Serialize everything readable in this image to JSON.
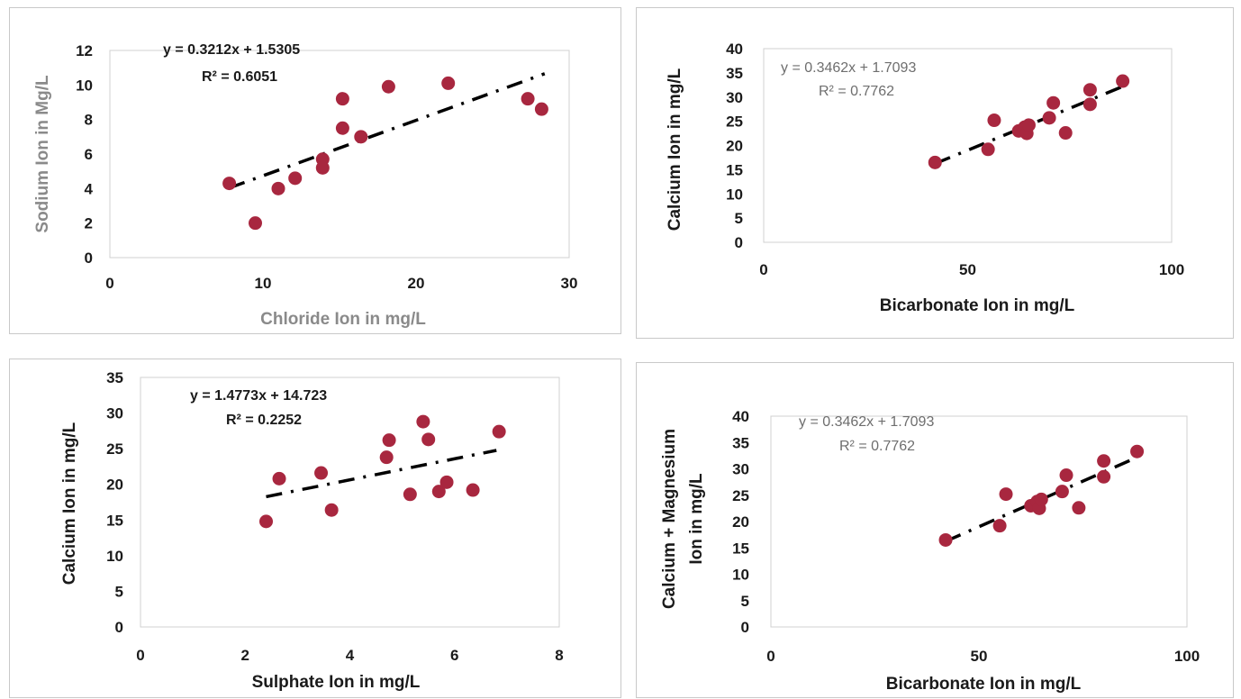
{
  "chart_data": [
    {
      "type": "scatter",
      "xlabel": "Chloride Ion in mg/L",
      "ylabel": "Sodium Ion in Mg/L",
      "xlim": [
        0,
        30
      ],
      "ylim": [
        0,
        12
      ],
      "xticks": [
        "0",
        "10",
        "20",
        "30"
      ],
      "yticks": [
        "0",
        "2",
        "4",
        "6",
        "8",
        "10",
        "12"
      ],
      "equation": "y = 0.3212x + 1.5305",
      "r2": "R² = 0.6051",
      "trend": {
        "slope": 0.3212,
        "intercept": 1.5305,
        "x_range": [
          7.8,
          28.4
        ]
      },
      "points": [
        {
          "x": 7.8,
          "y": 4.3
        },
        {
          "x": 9.5,
          "y": 2.0
        },
        {
          "x": 11.0,
          "y": 4.0
        },
        {
          "x": 12.1,
          "y": 4.6
        },
        {
          "x": 13.9,
          "y": 5.7
        },
        {
          "x": 13.9,
          "y": 5.2
        },
        {
          "x": 15.2,
          "y": 9.2
        },
        {
          "x": 15.2,
          "y": 7.5
        },
        {
          "x": 16.4,
          "y": 7.0
        },
        {
          "x": 18.2,
          "y": 9.9
        },
        {
          "x": 22.1,
          "y": 10.1
        },
        {
          "x": 27.3,
          "y": 9.2
        },
        {
          "x": 28.2,
          "y": 8.6
        }
      ],
      "colors": {
        "point": "#a8273f",
        "trend": "#000000",
        "ylabel": "#8a8a8a",
        "xlabel": "#8a8a8a"
      }
    },
    {
      "type": "scatter",
      "xlabel": "Bicarbonate Ion in mg/L",
      "ylabel": "Calcium Ion in mg/L",
      "xlim": [
        0,
        100
      ],
      "ylim": [
        0,
        40
      ],
      "xticks": [
        "0",
        "50",
        "100"
      ],
      "yticks": [
        "0",
        "5",
        "10",
        "15",
        "20",
        "25",
        "30",
        "35",
        "40"
      ],
      "equation": "y = 0.3462x + 1.7093",
      "r2": "R² = 0.7762",
      "trend": {
        "slope": 0.3462,
        "intercept": 1.7093,
        "x_range": [
          42,
          88
        ]
      },
      "points": [
        {
          "x": 42,
          "y": 16.5
        },
        {
          "x": 55,
          "y": 19.2
        },
        {
          "x": 56.5,
          "y": 25.2
        },
        {
          "x": 62.5,
          "y": 23
        },
        {
          "x": 64,
          "y": 23.8
        },
        {
          "x": 64.5,
          "y": 22.5
        },
        {
          "x": 65,
          "y": 24.2
        },
        {
          "x": 70,
          "y": 25.7
        },
        {
          "x": 71,
          "y": 28.8
        },
        {
          "x": 74,
          "y": 22.6
        },
        {
          "x": 80,
          "y": 28.5
        },
        {
          "x": 80,
          "y": 31.5
        },
        {
          "x": 88,
          "y": 33.3
        }
      ],
      "colors": {
        "point": "#a8273f",
        "trend": "#000000"
      }
    },
    {
      "type": "scatter",
      "xlabel": "Sulphate Ion in mg/L",
      "ylabel": "Calcium Ion in mg/L",
      "xlim": [
        0,
        8
      ],
      "ylim": [
        0,
        35
      ],
      "xticks": [
        "0",
        "2",
        "4",
        "6",
        "8"
      ],
      "yticks": [
        "0",
        "5",
        "10",
        "15",
        "20",
        "25",
        "30",
        "35"
      ],
      "equation": "y = 1.4773x + 14.723",
      "r2": "R² = 0.2252",
      "trend": {
        "slope": 1.4773,
        "intercept": 14.723,
        "x_range": [
          2.4,
          6.8
        ]
      },
      "points": [
        {
          "x": 2.4,
          "y": 14.8
        },
        {
          "x": 2.65,
          "y": 20.8
        },
        {
          "x": 3.45,
          "y": 21.6
        },
        {
          "x": 3.65,
          "y": 16.4
        },
        {
          "x": 4.7,
          "y": 23.8
        },
        {
          "x": 4.75,
          "y": 26.2
        },
        {
          "x": 5.15,
          "y": 18.6
        },
        {
          "x": 5.4,
          "y": 28.8
        },
        {
          "x": 5.5,
          "y": 26.3
        },
        {
          "x": 5.7,
          "y": 19.0
        },
        {
          "x": 5.85,
          "y": 20.3
        },
        {
          "x": 6.35,
          "y": 19.2
        },
        {
          "x": 6.85,
          "y": 27.4
        }
      ],
      "colors": {
        "point": "#a8273f",
        "trend": "#000000"
      }
    },
    {
      "type": "scatter",
      "xlabel": "Bicarbonate Ion in mg/L",
      "ylabel": "Calcium + Magnesium Ion in mg/L",
      "ylabel_lines": [
        "Calcium + Magnesium",
        "Ion in mg/L"
      ],
      "xlim": [
        0,
        100
      ],
      "ylim": [
        0,
        40
      ],
      "xticks": [
        "0",
        "50",
        "100"
      ],
      "yticks": [
        "0",
        "5",
        "10",
        "15",
        "20",
        "25",
        "30",
        "35",
        "40"
      ],
      "equation": "y = 0.3462x + 1.7093",
      "r2": "R² = 0.7762",
      "trend": {
        "slope": 0.3462,
        "intercept": 1.7093,
        "x_range": [
          42,
          88
        ]
      },
      "points": [
        {
          "x": 42,
          "y": 16.5
        },
        {
          "x": 55,
          "y": 19.2
        },
        {
          "x": 56.5,
          "y": 25.2
        },
        {
          "x": 62.5,
          "y": 23
        },
        {
          "x": 64,
          "y": 23.8
        },
        {
          "x": 64.5,
          "y": 22.5
        },
        {
          "x": 65,
          "y": 24.2
        },
        {
          "x": 70,
          "y": 25.7
        },
        {
          "x": 71,
          "y": 28.8
        },
        {
          "x": 74,
          "y": 22.6
        },
        {
          "x": 80,
          "y": 28.5
        },
        {
          "x": 80,
          "y": 31.5
        },
        {
          "x": 88,
          "y": 33.3
        }
      ],
      "colors": {
        "point": "#a8273f",
        "trend": "#000000"
      }
    }
  ]
}
